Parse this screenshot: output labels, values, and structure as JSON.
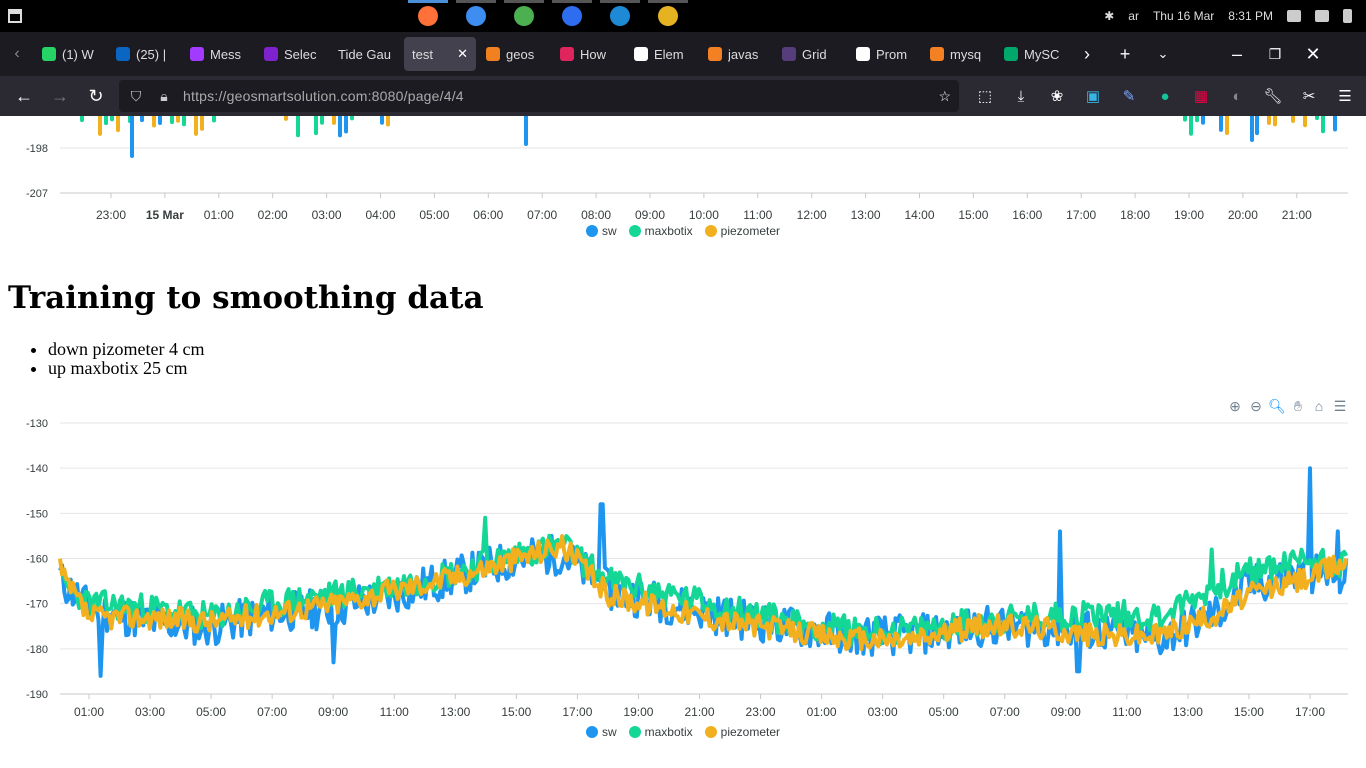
{
  "system": {
    "date": "Thu 16 Mar",
    "time": "8:31 PM",
    "lang": "ar",
    "dock_apps": [
      {
        "name": "firefox",
        "color": "#ff7139",
        "active": true
      },
      {
        "name": "files",
        "color": "#3d8ef0",
        "active": false
      },
      {
        "name": "software",
        "color": "#4caf50",
        "active": false
      },
      {
        "name": "people",
        "color": "#2e6df0",
        "active": false
      },
      {
        "name": "vscode",
        "color": "#1e8ad6",
        "active": false
      },
      {
        "name": "chrome",
        "color": "#e5b321",
        "active": false
      }
    ]
  },
  "tabs": [
    {
      "label": "(1) W",
      "color": "#25d366"
    },
    {
      "label": "(25) |",
      "color": "#0a66c2"
    },
    {
      "label": "Mess",
      "color": "#a23bff"
    },
    {
      "label": "Selec",
      "color": "#7e22ce"
    },
    {
      "label": "Tide Gau",
      "color": ""
    },
    {
      "label": "test",
      "color": "",
      "active": true
    },
    {
      "label": "geos",
      "color": "#f08020"
    },
    {
      "label": "How",
      "color": "#e0245e"
    },
    {
      "label": "Elem",
      "color": "#ffffff"
    },
    {
      "label": "javas",
      "color": "#f48024"
    },
    {
      "label": "Grid",
      "color": "#563d7c"
    },
    {
      "label": "Prom",
      "color": "#ffffff"
    },
    {
      "label": "mysq",
      "color": "#f48024"
    },
    {
      "label": "MySC",
      "color": "#00a86b"
    }
  ],
  "nav": {
    "url_host": "https://geosmartsolution.com",
    "url_rest": ":8080/page/4/4"
  },
  "heading": "Training to smoothing data",
  "notes": [
    "down pizometer 4 cm",
    "up maxbotix 25 cm"
  ],
  "legend": [
    {
      "name": "sw",
      "color": "#1e96f0"
    },
    {
      "name": "maxbotix",
      "color": "#15d795"
    },
    {
      "name": "piezometer",
      "color": "#f2b01e"
    }
  ],
  "chart_data": [
    {
      "type": "line",
      "title": "",
      "x": [
        "23:00",
        "15 Mar",
        "01:00",
        "02:00",
        "03:00",
        "04:00",
        "05:00",
        "06:00",
        "07:00",
        "08:00",
        "09:00",
        "10:00",
        "11:00",
        "12:00",
        "13:00",
        "14:00",
        "15:00",
        "16:00",
        "17:00",
        "18:00",
        "19:00",
        "20:00",
        "21:00"
      ],
      "y_ticks": [
        -198,
        -207
      ],
      "series": [
        {
          "name": "sw",
          "dips": [
            {
              "x": "23:20",
              "y": -200
            },
            {
              "x": "06:40",
              "y": -197
            },
            {
              "x": "20:10",
              "y": -197
            }
          ]
        },
        {
          "name": "maxbotix",
          "values_visible": "partial (clipped)"
        },
        {
          "name": "piezometer",
          "values_visible": "partial (clipped)"
        }
      ],
      "legend_position": "bottom"
    },
    {
      "type": "line",
      "title": "",
      "ylim": [
        -190,
        -130
      ],
      "y_ticks": [
        -130,
        -140,
        -150,
        -160,
        -170,
        -180,
        -190
      ],
      "x_ticks": [
        "01:00",
        "03:00",
        "05:00",
        "07:00",
        "09:00",
        "11:00",
        "13:00",
        "15:00",
        "17:00",
        "19:00",
        "21:00",
        "23:00",
        "01:00",
        "03:00",
        "05:00",
        "07:00",
        "09:00",
        "11:00",
        "13:00",
        "15:00",
        "17:00"
      ],
      "x_hours_offset": [
        0,
        2,
        4,
        6,
        8,
        10,
        12,
        14,
        16,
        18,
        20,
        22,
        24,
        26,
        28,
        30,
        32,
        34,
        36,
        38,
        40
      ],
      "series": [
        {
          "name": "sw",
          "anchors": [
            [
              -0.9,
              -165
            ],
            [
              0,
              -171
            ],
            [
              2,
              -174
            ],
            [
              4,
              -175
            ],
            [
              6,
              -172
            ],
            [
              8,
              -171
            ],
            [
              10,
              -168
            ],
            [
              12,
              -164
            ],
            [
              14,
              -160
            ],
            [
              15.5,
              -159
            ],
            [
              17,
              -167
            ],
            [
              19,
              -170
            ],
            [
              21,
              -173
            ],
            [
              23,
              -175
            ],
            [
              25,
              -177
            ],
            [
              27,
              -177
            ],
            [
              29,
              -175
            ],
            [
              31,
              -175
            ],
            [
              33,
              -176
            ],
            [
              35,
              -178
            ],
            [
              37,
              -172
            ],
            [
              38,
              -166
            ],
            [
              40,
              -163
            ],
            [
              41,
              -164
            ]
          ],
          "spikes": [
            [
              16.8,
              -148
            ],
            [
              31.8,
              -154
            ],
            [
              40.0,
              -140
            ],
            [
              40.9,
              -154
            ],
            [
              0.4,
              -186
            ],
            [
              8.0,
              -183
            ],
            [
              32.4,
              -185
            ]
          ]
        },
        {
          "name": "maxbotix",
          "anchors": [
            [
              -0.9,
              -166
            ],
            [
              0,
              -170
            ],
            [
              2,
              -171
            ],
            [
              4,
              -173
            ],
            [
              6,
              -170
            ],
            [
              8,
              -168
            ],
            [
              10,
              -166
            ],
            [
              12,
              -163
            ],
            [
              14,
              -159
            ],
            [
              15.5,
              -157
            ],
            [
              17,
              -165
            ],
            [
              19,
              -168
            ],
            [
              21,
              -171
            ],
            [
              23,
              -174
            ],
            [
              25,
              -176
            ],
            [
              27,
              -176
            ],
            [
              29,
              -174
            ],
            [
              31,
              -173
            ],
            [
              33,
              -172
            ],
            [
              35,
              -173
            ],
            [
              37,
              -166
            ],
            [
              38,
              -163
            ],
            [
              40,
              -160
            ],
            [
              41,
              -161
            ]
          ],
          "spikes": [
            [
              13.0,
              -151
            ],
            [
              36.8,
              -158
            ]
          ]
        },
        {
          "name": "piezometer",
          "anchors": [
            [
              -0.9,
              -164
            ],
            [
              0,
              -173
            ],
            [
              2,
              -173
            ],
            [
              4,
              -174
            ],
            [
              6,
              -172
            ],
            [
              8,
              -170
            ],
            [
              10,
              -167
            ],
            [
              12,
              -164
            ],
            [
              14,
              -160
            ],
            [
              15.5,
              -157
            ],
            [
              17,
              -168
            ],
            [
              19,
              -171
            ],
            [
              21,
              -174
            ],
            [
              23,
              -176
            ],
            [
              25,
              -178
            ],
            [
              27,
              -178
            ],
            [
              29,
              -175
            ],
            [
              31,
              -175
            ],
            [
              33,
              -177
            ],
            [
              35,
              -177
            ],
            [
              37,
              -172
            ],
            [
              38,
              -168
            ],
            [
              40,
              -164
            ],
            [
              41,
              -161
            ]
          ],
          "spikes": []
        }
      ],
      "grid": true,
      "legend_position": "bottom",
      "toolbar": [
        "zoom-in",
        "zoom-out",
        "zoom-select",
        "pan",
        "reset",
        "menu"
      ]
    }
  ]
}
